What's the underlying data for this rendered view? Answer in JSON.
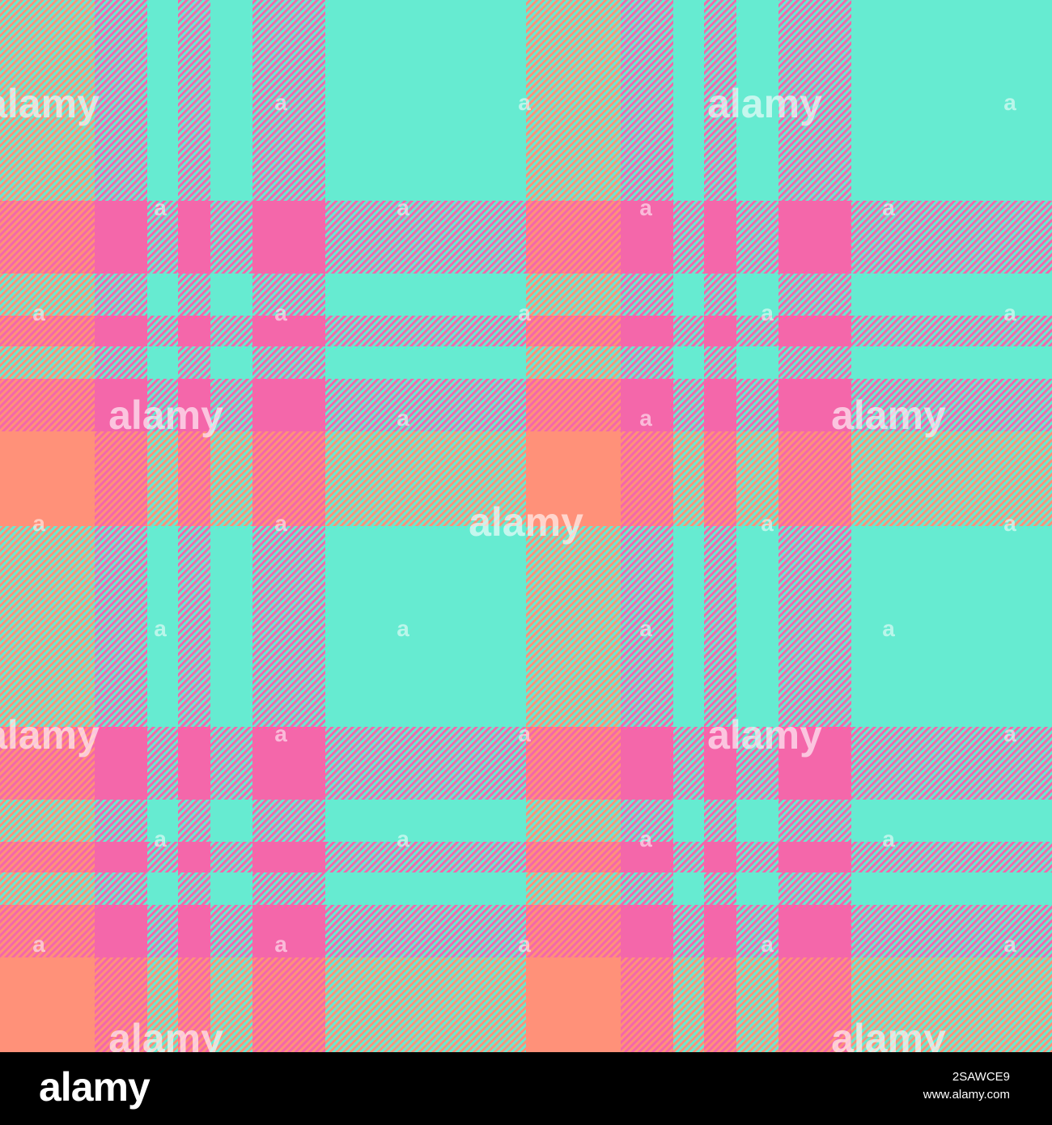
{
  "image": {
    "pattern": "plaid-tartan",
    "colors": {
      "aqua": "#66EBD1",
      "hot_pink": "#F467AA",
      "salmon": "#FF9179",
      "coral_pink": "#FA8193",
      "mauve": "#C49BC6",
      "khaki": "#C6AE94",
      "stripe_pink": "#F467AA",
      "stripe_aqua": "#66EBD1",
      "stripe_salmon": "#FF9179"
    }
  },
  "watermark": {
    "text": "alamy",
    "small_text": "a"
  },
  "footer": {
    "brand": "alamy",
    "image_id": "2SAWCE9",
    "url": "www.alamy.com"
  }
}
